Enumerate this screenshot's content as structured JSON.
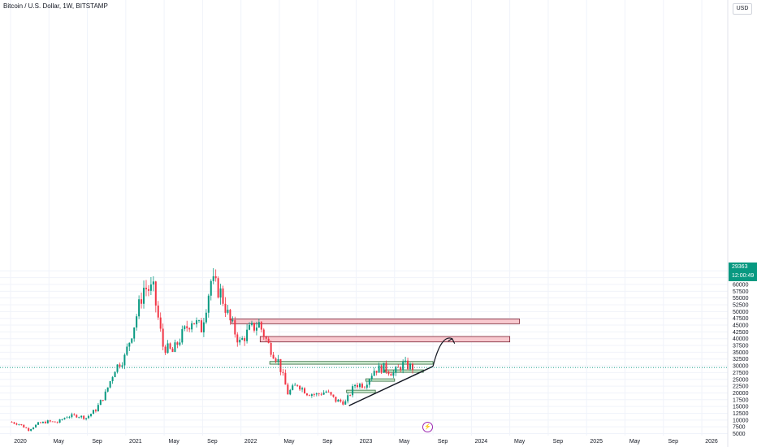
{
  "header": {
    "title": "Bitcoin / U.S. Dollar, 1W, BITSTAMP",
    "currency": "USD"
  },
  "price_tag": {
    "price": "29363",
    "countdown": "12:00:49"
  },
  "indicator_icon": "lightning-bolt-icon",
  "colors": {
    "up": "#089981",
    "down": "#f23645",
    "resistance_fill": "#f8c9cf",
    "support_fill": "#d3eed5",
    "grid": "#f0f3fa"
  },
  "chart_data": {
    "type": "candlestick",
    "title": "Bitcoin / U.S. Dollar, 1W, BITSTAMP",
    "xlabel": "",
    "ylabel": "",
    "x_ticks": [
      "2020",
      "May",
      "Sep",
      "2021",
      "May",
      "Sep",
      "2022",
      "May",
      "Sep",
      "2023",
      "May",
      "Sep",
      "2024",
      "May",
      "Sep",
      "2025",
      "May",
      "Sep",
      "2026"
    ],
    "y_ticks": [
      "65000",
      "62500",
      "60000",
      "57500",
      "55000",
      "52500",
      "50000",
      "47500",
      "45000",
      "42500",
      "40000",
      "37500",
      "35000",
      "32500",
      "30000",
      "27500",
      "25000",
      "22500",
      "20000",
      "17500",
      "15000",
      "12500",
      "10000",
      "7500",
      "5000"
    ],
    "ylim": [
      5000,
      67000
    ],
    "monthly_closes": [
      {
        "date": "2020-01",
        "close": 9350
      },
      {
        "date": "2020-02",
        "close": 8550
      },
      {
        "date": "2020-03",
        "close": 6400
      },
      {
        "date": "2020-04",
        "close": 8650
      },
      {
        "date": "2020-05",
        "close": 9450
      },
      {
        "date": "2020-06",
        "close": 9150
      },
      {
        "date": "2020-07",
        "close": 11350
      },
      {
        "date": "2020-08",
        "close": 11650
      },
      {
        "date": "2020-09",
        "close": 10800
      },
      {
        "date": "2020-10",
        "close": 13800
      },
      {
        "date": "2020-11",
        "close": 19700
      },
      {
        "date": "2020-12",
        "close": 29000
      },
      {
        "date": "2021-01",
        "close": 33100
      },
      {
        "date": "2021-02",
        "close": 45200
      },
      {
        "date": "2021-03",
        "close": 58800
      },
      {
        "date": "2021-04",
        "close": 57700
      },
      {
        "date": "2021-05",
        "close": 37300
      },
      {
        "date": "2021-06",
        "close": 35000
      },
      {
        "date": "2021-07",
        "close": 41500
      },
      {
        "date": "2021-08",
        "close": 47100
      },
      {
        "date": "2021-09",
        "close": 43800
      },
      {
        "date": "2021-10",
        "close": 61300
      },
      {
        "date": "2021-11",
        "close": 57000
      },
      {
        "date": "2021-12",
        "close": 46300
      },
      {
        "date": "2022-01",
        "close": 38500
      },
      {
        "date": "2022-02",
        "close": 43200
      },
      {
        "date": "2022-03",
        "close": 45500
      },
      {
        "date": "2022-04",
        "close": 37700
      },
      {
        "date": "2022-05",
        "close": 31800
      },
      {
        "date": "2022-06",
        "close": 19900
      },
      {
        "date": "2022-07",
        "close": 23300
      },
      {
        "date": "2022-08",
        "close": 20000
      },
      {
        "date": "2022-09",
        "close": 19400
      },
      {
        "date": "2022-10",
        "close": 20500
      },
      {
        "date": "2022-11",
        "close": 17200
      },
      {
        "date": "2022-12",
        "close": 16500
      },
      {
        "date": "2023-01",
        "close": 23100
      },
      {
        "date": "2023-02",
        "close": 23100
      },
      {
        "date": "2023-03",
        "close": 28500
      },
      {
        "date": "2023-04",
        "close": 29300
      },
      {
        "date": "2023-05",
        "close": 27200
      },
      {
        "date": "2023-06",
        "close": 30500
      },
      {
        "date": "2023-07",
        "close": 29363
      }
    ],
    "zones": [
      {
        "kind": "resistance",
        "from": "2021-12",
        "to": "2024-06",
        "low": 45500,
        "high": 47300
      },
      {
        "kind": "resistance",
        "from": "2022-03",
        "to": "2024-05",
        "low": 38800,
        "high": 40800
      },
      {
        "kind": "support",
        "from": "2022-04",
        "to": "2023-09",
        "low": 30600,
        "high": 31600
      },
      {
        "kind": "support",
        "from": "2023-04",
        "to": "2023-08",
        "low": 28000,
        "high": 28500
      },
      {
        "kind": "support",
        "from": "2023-02",
        "to": "2023-05",
        "low": 24800,
        "high": 25200
      },
      {
        "kind": "support",
        "from": "2022-12",
        "to": "2023-03",
        "low": 20600,
        "high": 21000
      }
    ],
    "trendline": {
      "from": {
        "date": "2022-12",
        "price": 16500
      },
      "to": {
        "date": "2023-09",
        "price": 29800
      }
    },
    "projection_arrow": {
      "from": {
        "date": "2023-09",
        "price": 29800
      },
      "to": {
        "date": "2023-11",
        "price": 40000
      }
    },
    "last_price": 29363
  }
}
